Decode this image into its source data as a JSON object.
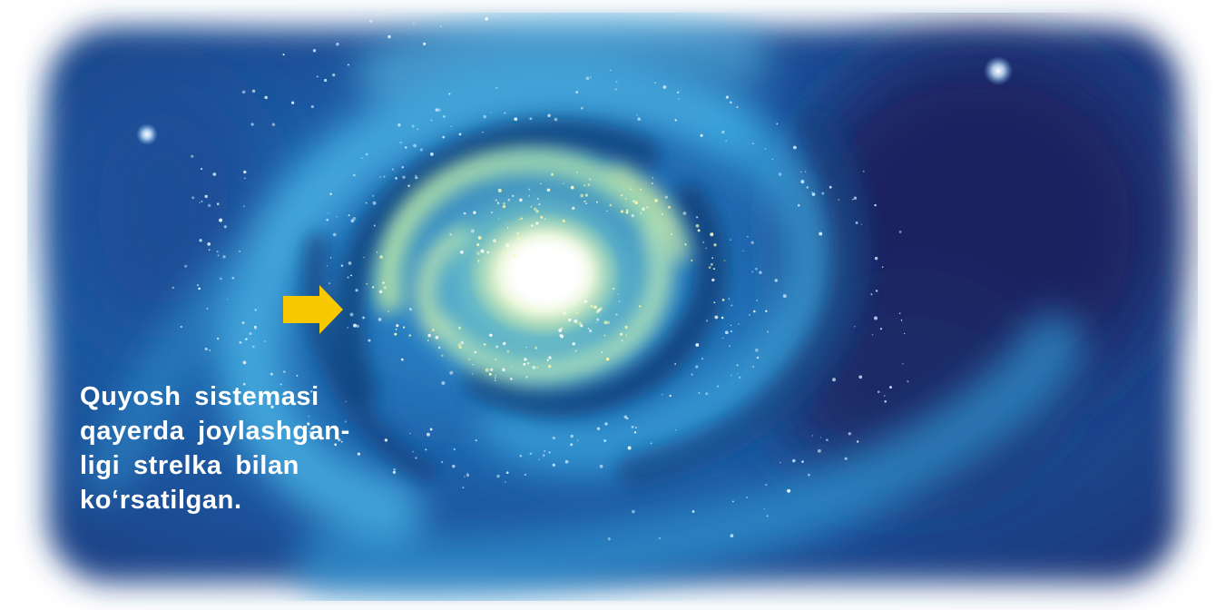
{
  "caption": {
    "lines": [
      "Quyosh sistemasi",
      "qayerda joylashgan-",
      "ligi strelka bilan",
      "ko‘rsatilgan."
    ]
  },
  "illustration": {
    "subject": "spiral-galaxy",
    "marker": "arrow-icon",
    "colors": {
      "arrow": "#f8c800",
      "core": "#ffffff",
      "inner_arms": "#e4f3a0",
      "outer_arms": "#3aa6dc",
      "dark_lanes": "#0f3f7c",
      "space": "#1a2b6a",
      "border": "#ffffff"
    }
  }
}
